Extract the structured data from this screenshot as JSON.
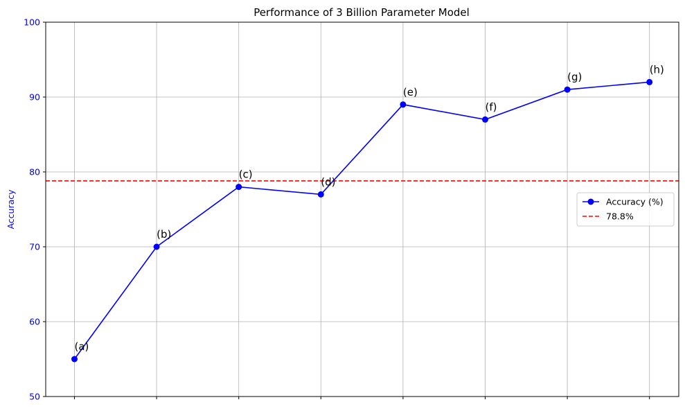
{
  "chart_data": {
    "type": "line",
    "title": "Performance of 3 Billion Parameter Model",
    "xlabel": "",
    "ylabel": "Accuracy",
    "x_tick_labels": [
      "",
      "",
      "",
      "",
      "",
      "",
      "",
      ""
    ],
    "ylim": [
      50,
      100
    ],
    "yticks": [
      50,
      60,
      70,
      80,
      90,
      100
    ],
    "grid": true,
    "legend_position": "right",
    "series": [
      {
        "name": "Accuracy (%)",
        "color": "#0000ff",
        "marker": "circle",
        "values": [
          55,
          70,
          78,
          77,
          89,
          87,
          91,
          92
        ],
        "point_labels": [
          "(a)",
          "(b)",
          "(c)",
          "(d)",
          "(e)",
          "(f)",
          "(g)",
          "(h)"
        ]
      }
    ],
    "reference_line": {
      "name": "78.8%",
      "value": 78.8,
      "color": "#ff0000",
      "style": "dashed"
    },
    "axis_label_color": "#0000ff",
    "y_tick_color": "#0000ff"
  }
}
